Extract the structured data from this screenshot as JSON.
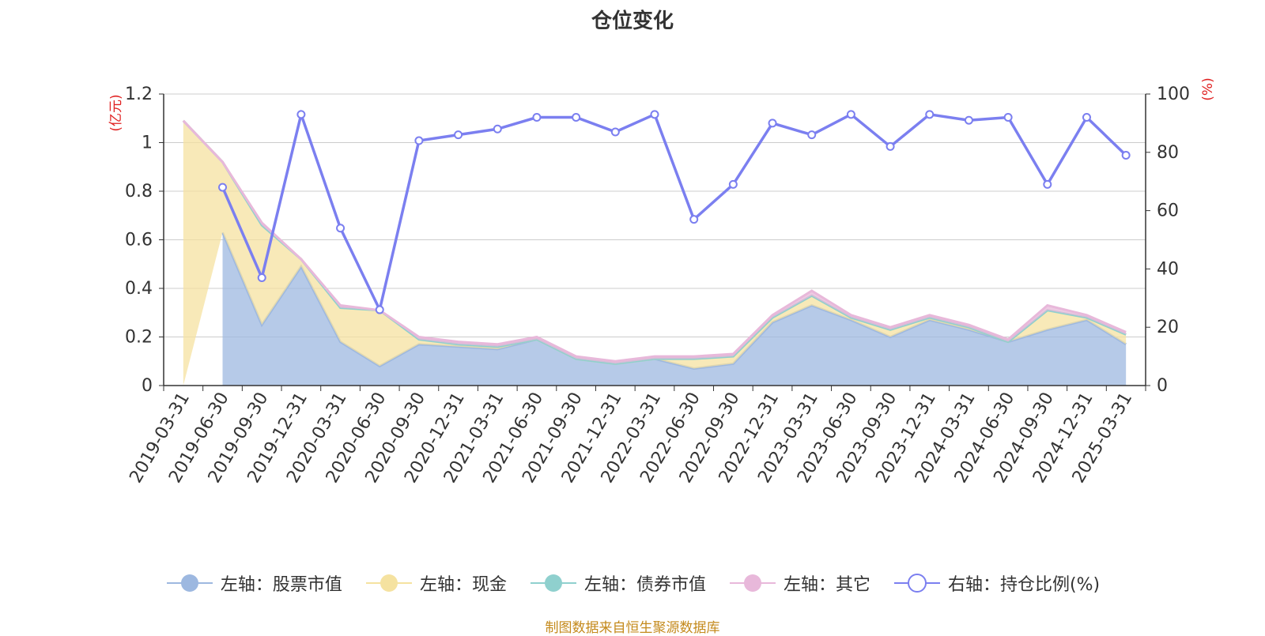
{
  "chart_data": {
    "type": "area",
    "title": "仓位变化",
    "left_unit": "(亿元)",
    "right_unit": "(%)",
    "ylim_left": [
      0,
      1.2
    ],
    "yticks_left": [
      "0",
      "0.2",
      "0.4",
      "0.6",
      "0.8",
      "1",
      "1.2"
    ],
    "ylim_right": [
      0,
      100
    ],
    "yticks_right": [
      "0",
      "20",
      "40",
      "60",
      "80",
      "100"
    ],
    "x": [
      "2019-03-31",
      "2019-06-30",
      "2019-09-30",
      "2019-12-31",
      "2020-03-31",
      "2020-06-30",
      "2020-09-30",
      "2020-12-31",
      "2021-03-31",
      "2021-06-30",
      "2021-09-30",
      "2021-12-31",
      "2022-03-31",
      "2022-06-30",
      "2022-09-30",
      "2022-12-31",
      "2023-03-31",
      "2023-06-30",
      "2023-09-30",
      "2023-12-31",
      "2024-03-31",
      "2024-06-30",
      "2024-09-30",
      "2024-12-31",
      "2025-03-31"
    ],
    "grid": true,
    "legend_position": "bottom",
    "series": [
      {
        "name": "左轴：股票市值",
        "axis": "left",
        "color": "#9db8e0",
        "values": [
          null,
          0.63,
          0.25,
          0.49,
          0.18,
          0.08,
          0.17,
          0.16,
          0.15,
          0.19,
          0.11,
          0.09,
          0.11,
          0.07,
          0.09,
          0.26,
          0.33,
          0.27,
          0.2,
          0.27,
          0.23,
          0.18,
          0.23,
          0.27,
          0.17
        ]
      },
      {
        "name": "左轴：现金",
        "axis": "left",
        "color": "#f5e2a0",
        "values": [
          1.09,
          0.29,
          0.41,
          0.03,
          0.14,
          0.23,
          0.02,
          0.01,
          0.01,
          0.0,
          0.0,
          0.0,
          0.0,
          0.04,
          0.03,
          0.02,
          0.04,
          0.01,
          0.03,
          0.01,
          0.01,
          0.0,
          0.08,
          0.01,
          0.04
        ]
      },
      {
        "name": "左轴：债券市值",
        "axis": "left",
        "color": "#8fd0ce",
        "values": [
          0,
          0,
          0,
          0,
          0,
          0,
          0,
          0,
          0,
          0,
          0,
          0,
          0,
          0,
          0,
          0,
          0,
          0,
          0,
          0,
          0,
          0,
          0,
          0,
          0
        ]
      },
      {
        "name": "左轴：其它",
        "axis": "left",
        "color": "#e8b8da",
        "values": [
          0.0,
          0.0,
          0.01,
          0.0,
          0.01,
          0.0,
          0.01,
          0.01,
          0.01,
          0.01,
          0.01,
          0.01,
          0.01,
          0.01,
          0.01,
          0.01,
          0.02,
          0.01,
          0.01,
          0.01,
          0.01,
          0.01,
          0.02,
          0.01,
          0.01
        ]
      },
      {
        "name": "右轴：持仓比例(%)",
        "axis": "right",
        "color": "#7b7ff0",
        "values": [
          null,
          68,
          37,
          93,
          54,
          26,
          84,
          86,
          88,
          92,
          92,
          87,
          93,
          57,
          69,
          90,
          86,
          93,
          82,
          93,
          91,
          92,
          69,
          92,
          79
        ]
      }
    ],
    "source": "制图数据来自恒生聚源数据库"
  }
}
